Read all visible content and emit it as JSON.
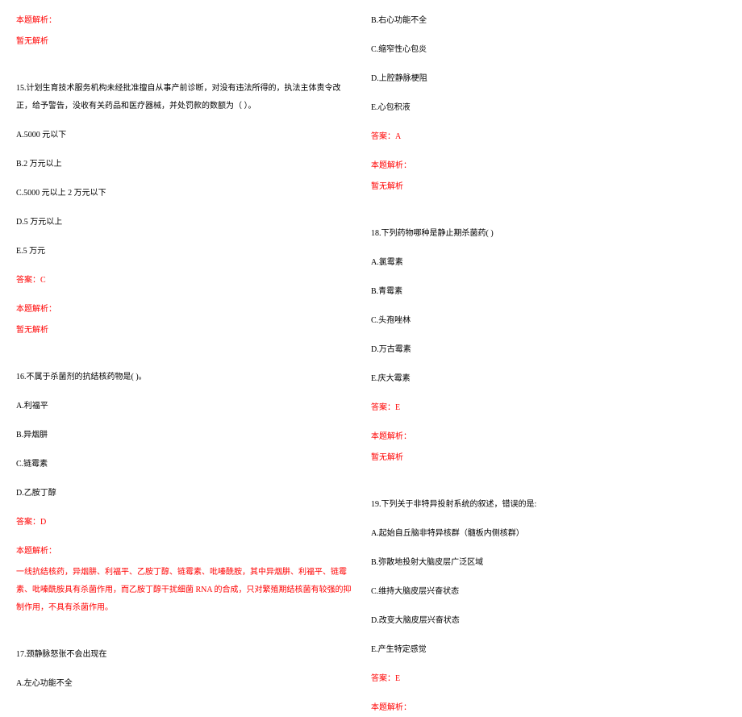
{
  "colors": {
    "text_black": "#000000",
    "text_red": "#ff0000",
    "background": "#ffffff"
  },
  "typography": {
    "font_family": "SimSun",
    "font_size": 10,
    "line_height": 2.2
  },
  "left_column": {
    "analysis_header_1": "本题解析：",
    "no_analysis_1": "暂无解析",
    "q15": {
      "stem": "15.计划生育技术服务机构未经批准擅自从事产前诊断，对没有违法所得的，执法主体责令改正，给予警告，没收有关药品和医疗器械，并处罚款的数额为（  ）。",
      "opt_a": "A.5000 元以下",
      "opt_b": "B.2 万元以上",
      "opt_c": "C.5000 元以上 2 万元以下",
      "opt_d": "D.5 万元以上",
      "opt_e": "E.5 万元",
      "answer": "答案：C",
      "analysis_header": "本题解析：",
      "no_analysis": "暂无解析"
    },
    "q16": {
      "stem": "16.不属于杀菌剂的抗结核药物是( )。",
      "opt_a": "A.利福平",
      "opt_b": "B.异烟肼",
      "opt_c": "C.链霉素",
      "opt_d": "D.乙胺丁醇",
      "answer": "答案：D",
      "analysis_header": "本题解析：",
      "analysis_body": "一线抗结核药，异烟肼、利福平、乙胺丁醇、链霉素、吡嗪酰胺，其中异烟肼、利福平、链霉素、吡嗪酰胺具有杀菌作用，而乙胺丁醇干扰细菌 RNA 的合成，只对繁殖期结核菌有较强的抑制作用，不具有杀菌作用。"
    },
    "q17": {
      "stem": "17.颈静脉怒张不会出现在",
      "opt_a": "A.左心功能不全"
    }
  },
  "right_column": {
    "q17_cont": {
      "opt_b": "B.右心功能不全",
      "opt_c": "C.缩窄性心包炎",
      "opt_d": "D.上腔静脉梗阻",
      "opt_e": "E.心包积液",
      "answer": "答案：A",
      "analysis_header": "本题解析：",
      "no_analysis": "暂无解析"
    },
    "q18": {
      "stem": "18.下列药物哪种是静止期杀菌药(    )",
      "opt_a": "A.氯霉素",
      "opt_b": "B.青霉素",
      "opt_c": "C.头孢唑林",
      "opt_d": "D.万古霉素",
      "opt_e": "E.庆大霉素",
      "answer": "答案：E",
      "analysis_header": "本题解析：",
      "no_analysis": "暂无解析"
    },
    "q19": {
      "stem": "19.下列关于非特异投射系统的叙述，错误的是:",
      "opt_a": "A.起始自丘脑非特异核群（髓板内侧核群）",
      "opt_b": "B.弥散地投射大脑皮层广泛区域",
      "opt_c": "C.维持大脑皮层兴奋状态",
      "opt_d": "D.改变大脑皮层兴奋状态",
      "opt_e": "E.产生特定感觉",
      "answer": "答案：E",
      "analysis_header": "本题解析："
    }
  }
}
